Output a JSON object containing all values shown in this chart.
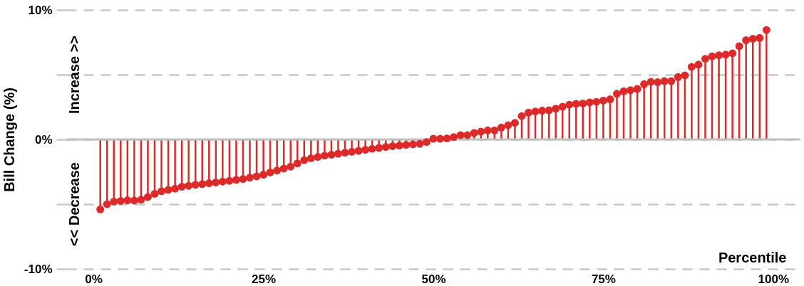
{
  "chart_data": {
    "type": "lollipop",
    "xlabel": "Percentile",
    "ylabel": "Bill Change (%)",
    "annotations": [
      "Increase >>",
      "<< Decrease"
    ],
    "x": [
      1,
      2,
      3,
      4,
      5,
      6,
      7,
      8,
      9,
      10,
      11,
      12,
      13,
      14,
      15,
      16,
      17,
      18,
      19,
      20,
      21,
      22,
      23,
      24,
      25,
      26,
      27,
      28,
      29,
      30,
      31,
      32,
      33,
      34,
      35,
      36,
      37,
      38,
      39,
      40,
      41,
      42,
      43,
      44,
      45,
      46,
      47,
      48,
      49,
      50,
      51,
      52,
      53,
      54,
      55,
      56,
      57,
      58,
      59,
      60,
      61,
      62,
      63,
      64,
      65,
      66,
      67,
      68,
      69,
      70,
      71,
      72,
      73,
      74,
      75,
      76,
      77,
      78,
      79,
      80,
      81,
      82,
      83,
      84,
      85,
      86,
      87,
      88,
      89,
      90,
      91,
      92,
      93,
      94,
      95,
      96,
      97,
      98,
      99
    ],
    "values": [
      -5.4,
      -5.0,
      -4.8,
      -4.75,
      -4.7,
      -4.72,
      -4.65,
      -4.45,
      -4.2,
      -4.0,
      -3.9,
      -3.8,
      -3.65,
      -3.58,
      -3.5,
      -3.45,
      -3.38,
      -3.32,
      -3.25,
      -3.2,
      -3.12,
      -3.05,
      -2.95,
      -2.85,
      -2.72,
      -2.55,
      -2.4,
      -2.25,
      -2.1,
      -1.85,
      -1.6,
      -1.45,
      -1.35,
      -1.25,
      -1.18,
      -1.1,
      -1.02,
      -0.95,
      -0.88,
      -0.8,
      -0.72,
      -0.65,
      -0.58,
      -0.52,
      -0.47,
      -0.42,
      -0.38,
      -0.34,
      -0.2,
      0.05,
      0.05,
      0.08,
      0.18,
      0.33,
      0.33,
      0.5,
      0.6,
      0.7,
      0.7,
      0.92,
      1.1,
      1.28,
      1.8,
      2.07,
      2.16,
      2.22,
      2.25,
      2.38,
      2.53,
      2.68,
      2.75,
      2.78,
      2.86,
      2.9,
      3.0,
      3.1,
      3.53,
      3.72,
      3.8,
      3.9,
      4.27,
      4.45,
      4.42,
      4.5,
      4.5,
      4.82,
      4.95,
      5.6,
      5.78,
      6.23,
      6.42,
      6.5,
      6.55,
      6.65,
      7.2,
      7.66,
      7.78,
      7.84,
      8.45
    ],
    "color": "#dc2a2a",
    "marker": "circle",
    "xlim": [
      -4,
      104
    ],
    "ylim": [
      -10,
      10
    ],
    "xticks": [
      {
        "value": 0,
        "label": "0%"
      },
      {
        "value": 25,
        "label": "25%"
      },
      {
        "value": 50,
        "label": "50%"
      },
      {
        "value": 75,
        "label": "75%"
      },
      {
        "value": 100,
        "label": "100%"
      }
    ],
    "yticks": [
      {
        "value": -10,
        "label": "-10%"
      },
      {
        "value": -5,
        "label": null
      },
      {
        "value": 0,
        "label": "0%"
      },
      {
        "value": 5,
        "label": null
      },
      {
        "value": 10,
        "label": "10%"
      }
    ],
    "grid": "y",
    "ref_lines": [
      {
        "axis": "y",
        "value": 0,
        "color": "#c0c0c0"
      }
    ]
  }
}
